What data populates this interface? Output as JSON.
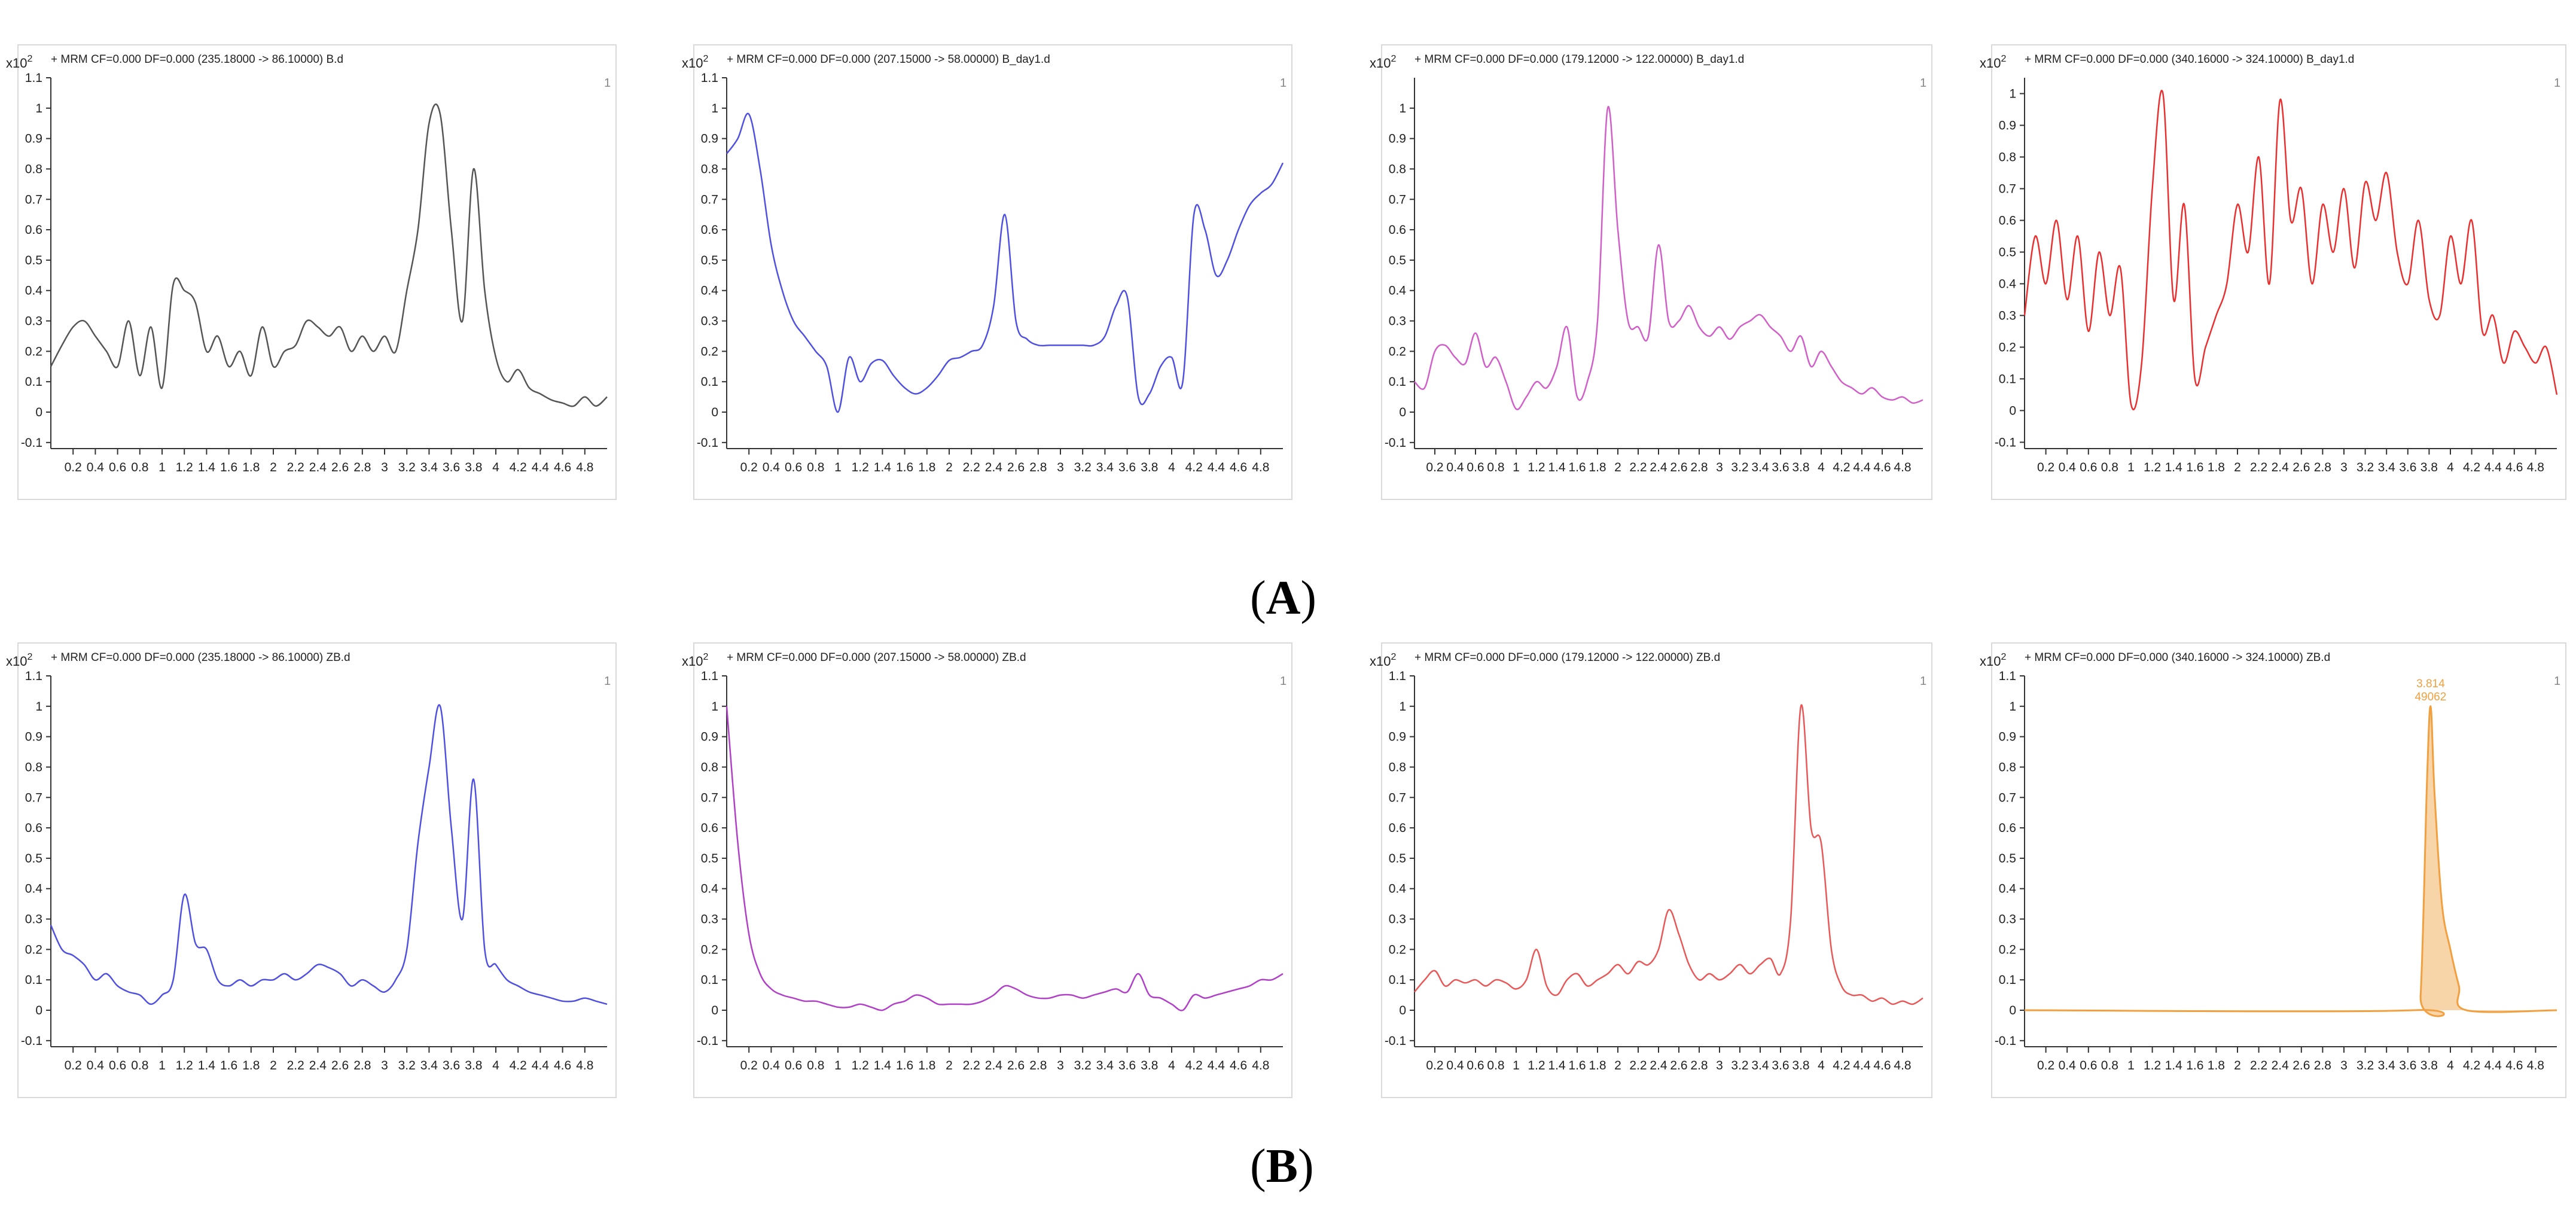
{
  "section_labels": {
    "a": "A",
    "b": "B"
  },
  "chart_data": [
    {
      "type": "line",
      "row": "A",
      "col": 0,
      "color": "#555555",
      "fill": false,
      "title": "MRM CF=0.000 DF=0.000 (235.18000 -> 86.10000) B.d",
      "y_exponent": "x10 2",
      "ylim": [
        -0.12,
        1.1
      ],
      "xlim": [
        0,
        5.0
      ],
      "x": [
        0,
        0.1,
        0.2,
        0.3,
        0.4,
        0.5,
        0.6,
        0.7,
        0.8,
        0.9,
        1.0,
        1.1,
        1.2,
        1.3,
        1.4,
        1.5,
        1.6,
        1.7,
        1.8,
        1.9,
        2.0,
        2.1,
        2.2,
        2.3,
        2.4,
        2.5,
        2.6,
        2.7,
        2.8,
        2.9,
        3.0,
        3.1,
        3.2,
        3.3,
        3.4,
        3.5,
        3.6,
        3.7,
        3.8,
        3.9,
        4.0,
        4.1,
        4.2,
        4.3,
        4.4,
        4.5,
        4.6,
        4.7,
        4.8,
        4.9,
        5.0
      ],
      "values": [
        0.15,
        0.22,
        0.28,
        0.3,
        0.25,
        0.2,
        0.15,
        0.3,
        0.12,
        0.28,
        0.08,
        0.42,
        0.4,
        0.36,
        0.2,
        0.25,
        0.15,
        0.2,
        0.12,
        0.28,
        0.15,
        0.2,
        0.22,
        0.3,
        0.28,
        0.25,
        0.28,
        0.2,
        0.25,
        0.2,
        0.25,
        0.2,
        0.4,
        0.6,
        0.95,
        0.98,
        0.6,
        0.3,
        0.8,
        0.4,
        0.18,
        0.1,
        0.14,
        0.08,
        0.06,
        0.04,
        0.03,
        0.02,
        0.05,
        0.02,
        0.05
      ],
      "ticks": [
        "0.2",
        "0.4",
        "0.6",
        "0.8",
        "1",
        "1.2",
        "1.4",
        "1.6",
        "1.8",
        "2",
        "2.2",
        "2.4",
        "2.6",
        "2.8",
        "3",
        "3.2",
        "3.4",
        "3.6",
        "3.8",
        "4",
        "4.2",
        "4.4",
        "4.6",
        "4.8"
      ],
      "yticks": [
        "-0.1",
        "0",
        "0.1",
        "0.2",
        "0.3",
        "0.4",
        "0.5",
        "0.6",
        "0.7",
        "0.8",
        "0.9",
        "1",
        "1.1"
      ]
    },
    {
      "type": "line",
      "row": "A",
      "col": 1,
      "color": "#5050e0",
      "fill": false,
      "title": "MRM CF=0.000 DF=0.000 (207.15000 -> 58.00000) B_day1.d",
      "y_exponent": "x10 2",
      "ylim": [
        -0.12,
        1.1
      ],
      "xlim": [
        0,
        5.0
      ],
      "x": [
        0,
        0.1,
        0.2,
        0.3,
        0.4,
        0.5,
        0.6,
        0.7,
        0.8,
        0.9,
        1.0,
        1.1,
        1.2,
        1.3,
        1.4,
        1.5,
        1.6,
        1.7,
        1.8,
        1.9,
        2.0,
        2.1,
        2.2,
        2.3,
        2.4,
        2.5,
        2.6,
        2.7,
        2.8,
        2.9,
        3.0,
        3.1,
        3.2,
        3.3,
        3.4,
        3.5,
        3.6,
        3.7,
        3.8,
        3.9,
        4.0,
        4.1,
        4.2,
        4.3,
        4.4,
        4.5,
        4.6,
        4.7,
        4.8,
        4.9,
        5.0
      ],
      "values": [
        0.85,
        0.9,
        0.98,
        0.8,
        0.55,
        0.4,
        0.3,
        0.25,
        0.2,
        0.15,
        0.0,
        0.18,
        0.1,
        0.16,
        0.17,
        0.12,
        0.08,
        0.06,
        0.08,
        0.12,
        0.17,
        0.18,
        0.2,
        0.22,
        0.35,
        0.65,
        0.3,
        0.24,
        0.22,
        0.22,
        0.22,
        0.22,
        0.22,
        0.22,
        0.25,
        0.35,
        0.38,
        0.05,
        0.06,
        0.15,
        0.18,
        0.1,
        0.65,
        0.6,
        0.45,
        0.5,
        0.6,
        0.68,
        0.72,
        0.75,
        0.82
      ],
      "ticks": [
        "0.2",
        "0.4",
        "0.6",
        "0.8",
        "1",
        "1.2",
        "1.4",
        "1.6",
        "1.8",
        "2",
        "2.2",
        "2.4",
        "2.6",
        "2.8",
        "3",
        "3.2",
        "3.4",
        "3.6",
        "3.8",
        "4",
        "4.2",
        "4.4",
        "4.6",
        "4.8"
      ],
      "yticks": [
        "-0.1",
        "0",
        "0.1",
        "0.2",
        "0.3",
        "0.4",
        "0.5",
        "0.6",
        "0.7",
        "0.8",
        "0.9",
        "1",
        "1.1"
      ]
    },
    {
      "type": "line",
      "row": "A",
      "col": 2,
      "color": "#d060c8",
      "fill": false,
      "title": "MRM CF=0.000 DF=0.000 (179.12000 -> 122.00000) B_day1.d",
      "y_exponent": "x10 2",
      "ylim": [
        -0.12,
        1.1
      ],
      "xlim": [
        0,
        5.0
      ],
      "x": [
        0,
        0.1,
        0.2,
        0.3,
        0.4,
        0.5,
        0.6,
        0.7,
        0.8,
        0.9,
        1.0,
        1.1,
        1.2,
        1.3,
        1.4,
        1.5,
        1.6,
        1.7,
        1.8,
        1.9,
        2.0,
        2.1,
        2.2,
        2.3,
        2.4,
        2.5,
        2.6,
        2.7,
        2.8,
        2.9,
        3.0,
        3.1,
        3.2,
        3.3,
        3.4,
        3.5,
        3.6,
        3.7,
        3.8,
        3.9,
        4.0,
        4.1,
        4.2,
        4.3,
        4.4,
        4.5,
        4.6,
        4.7,
        4.8,
        4.9,
        5.0
      ],
      "values": [
        0.1,
        0.08,
        0.2,
        0.22,
        0.18,
        0.16,
        0.26,
        0.15,
        0.18,
        0.1,
        0.01,
        0.05,
        0.1,
        0.08,
        0.15,
        0.28,
        0.05,
        0.1,
        0.3,
        1.0,
        0.6,
        0.3,
        0.28,
        0.25,
        0.55,
        0.3,
        0.3,
        0.35,
        0.28,
        0.25,
        0.28,
        0.24,
        0.28,
        0.3,
        0.32,
        0.28,
        0.25,
        0.2,
        0.25,
        0.15,
        0.2,
        0.15,
        0.1,
        0.08,
        0.06,
        0.08,
        0.05,
        0.04,
        0.05,
        0.03,
        0.04
      ],
      "ticks": [
        "0.2",
        "0.4",
        "0.6",
        "0.8",
        "1",
        "1.2",
        "1.4",
        "1.6",
        "1.8",
        "2",
        "2.2",
        "2.4",
        "2.6",
        "2.8",
        "3",
        "3.2",
        "3.4",
        "3.6",
        "3.8",
        "4",
        "4.2",
        "4.4",
        "4.6",
        "4.8"
      ],
      "yticks": [
        "-0.1",
        "0",
        "0.1",
        "0.2",
        "0.3",
        "0.4",
        "0.5",
        "0.6",
        "0.7",
        "0.8",
        "0.9",
        "1"
      ]
    },
    {
      "type": "line",
      "row": "A",
      "col": 3,
      "color": "#e83030",
      "fill": false,
      "title": "MRM CF=0.000 DF=0.000 (340.16000 -> 324.10000) B_day1.d",
      "y_exponent": "x10 2",
      "ylim": [
        -0.12,
        1.05
      ],
      "xlim": [
        0,
        5.0
      ],
      "x": [
        0,
        0.1,
        0.2,
        0.3,
        0.4,
        0.5,
        0.6,
        0.7,
        0.8,
        0.9,
        1.0,
        1.1,
        1.2,
        1.3,
        1.4,
        1.5,
        1.6,
        1.7,
        1.8,
        1.9,
        2.0,
        2.1,
        2.2,
        2.3,
        2.4,
        2.5,
        2.6,
        2.7,
        2.8,
        2.9,
        3.0,
        3.1,
        3.2,
        3.3,
        3.4,
        3.5,
        3.6,
        3.7,
        3.8,
        3.9,
        4.0,
        4.1,
        4.2,
        4.3,
        4.4,
        4.5,
        4.6,
        4.7,
        4.8,
        4.9,
        5.0
      ],
      "values": [
        0.3,
        0.55,
        0.4,
        0.6,
        0.35,
        0.55,
        0.25,
        0.5,
        0.3,
        0.45,
        0.02,
        0.15,
        0.7,
        1.0,
        0.35,
        0.65,
        0.1,
        0.2,
        0.3,
        0.4,
        0.65,
        0.5,
        0.8,
        0.4,
        0.98,
        0.6,
        0.7,
        0.4,
        0.65,
        0.5,
        0.7,
        0.45,
        0.72,
        0.6,
        0.75,
        0.5,
        0.4,
        0.6,
        0.35,
        0.3,
        0.55,
        0.4,
        0.6,
        0.25,
        0.3,
        0.15,
        0.25,
        0.2,
        0.15,
        0.2,
        0.05
      ],
      "ticks": [
        "0.2",
        "0.4",
        "0.6",
        "0.8",
        "1",
        "1.2",
        "1.4",
        "1.6",
        "1.8",
        "2",
        "2.2",
        "2.4",
        "2.6",
        "2.8",
        "3",
        "3.2",
        "3.4",
        "3.6",
        "3.8",
        "4",
        "4.2",
        "4.4",
        "4.6",
        "4.8"
      ],
      "yticks": [
        "-0.1",
        "0",
        "0.1",
        "0.2",
        "0.3",
        "0.4",
        "0.5",
        "0.6",
        "0.7",
        "0.8",
        "0.9",
        "1"
      ]
    },
    {
      "type": "line",
      "row": "B",
      "col": 0,
      "color": "#5050e0",
      "fill": false,
      "title": "MRM CF=0.000 DF=0.000 (235.18000 -> 86.10000) ZB.d",
      "y_exponent": "x10 2",
      "ylim": [
        -0.12,
        1.1
      ],
      "xlim": [
        0,
        5.0
      ],
      "x": [
        0,
        0.1,
        0.2,
        0.3,
        0.4,
        0.5,
        0.6,
        0.7,
        0.8,
        0.9,
        1.0,
        1.1,
        1.2,
        1.3,
        1.4,
        1.5,
        1.6,
        1.7,
        1.8,
        1.9,
        2.0,
        2.1,
        2.2,
        2.3,
        2.4,
        2.5,
        2.6,
        2.7,
        2.8,
        2.9,
        3.0,
        3.1,
        3.2,
        3.3,
        3.4,
        3.5,
        3.6,
        3.7,
        3.8,
        3.9,
        4.0,
        4.1,
        4.2,
        4.3,
        4.4,
        4.5,
        4.6,
        4.7,
        4.8,
        4.9,
        5.0
      ],
      "values": [
        0.28,
        0.2,
        0.18,
        0.15,
        0.1,
        0.12,
        0.08,
        0.06,
        0.05,
        0.02,
        0.05,
        0.1,
        0.38,
        0.22,
        0.2,
        0.1,
        0.08,
        0.1,
        0.08,
        0.1,
        0.1,
        0.12,
        0.1,
        0.12,
        0.15,
        0.14,
        0.12,
        0.08,
        0.1,
        0.08,
        0.06,
        0.1,
        0.2,
        0.55,
        0.8,
        1.0,
        0.6,
        0.3,
        0.76,
        0.2,
        0.15,
        0.1,
        0.08,
        0.06,
        0.05,
        0.04,
        0.03,
        0.03,
        0.04,
        0.03,
        0.02
      ],
      "ticks": [
        "0.2",
        "0.4",
        "0.6",
        "0.8",
        "1",
        "1.2",
        "1.4",
        "1.6",
        "1.8",
        "2",
        "2.2",
        "2.4",
        "2.6",
        "2.8",
        "3",
        "3.2",
        "3.4",
        "3.6",
        "3.8",
        "4",
        "4.2",
        "4.4",
        "4.6",
        "4.8"
      ],
      "yticks": [
        "-0.1",
        "0",
        "0.1",
        "0.2",
        "0.3",
        "0.4",
        "0.5",
        "0.6",
        "0.7",
        "0.8",
        "0.9",
        "1",
        "1.1"
      ]
    },
    {
      "type": "line",
      "row": "B",
      "col": 1,
      "color": "#b040c8",
      "fill": false,
      "title": "MRM CF=0.000 DF=0.000 (207.15000 -> 58.00000) ZB.d",
      "y_exponent": "x10 2",
      "ylim": [
        -0.12,
        1.1
      ],
      "xlim": [
        0,
        5.0
      ],
      "x": [
        0,
        0.1,
        0.2,
        0.3,
        0.4,
        0.5,
        0.6,
        0.7,
        0.8,
        0.9,
        1.0,
        1.1,
        1.2,
        1.3,
        1.4,
        1.5,
        1.6,
        1.7,
        1.8,
        1.9,
        2.0,
        2.1,
        2.2,
        2.3,
        2.4,
        2.5,
        2.6,
        2.7,
        2.8,
        2.9,
        3.0,
        3.1,
        3.2,
        3.3,
        3.4,
        3.5,
        3.6,
        3.7,
        3.8,
        3.9,
        4.0,
        4.1,
        4.2,
        4.3,
        4.4,
        4.5,
        4.6,
        4.7,
        4.8,
        4.9,
        5.0
      ],
      "values": [
        1.0,
        0.55,
        0.25,
        0.12,
        0.07,
        0.05,
        0.04,
        0.03,
        0.03,
        0.02,
        0.01,
        0.01,
        0.02,
        0.01,
        0.0,
        0.02,
        0.03,
        0.05,
        0.04,
        0.02,
        0.02,
        0.02,
        0.02,
        0.03,
        0.05,
        0.08,
        0.07,
        0.05,
        0.04,
        0.04,
        0.05,
        0.05,
        0.04,
        0.05,
        0.06,
        0.07,
        0.06,
        0.12,
        0.05,
        0.04,
        0.02,
        0.0,
        0.05,
        0.04,
        0.05,
        0.06,
        0.07,
        0.08,
        0.1,
        0.1,
        0.12
      ],
      "ticks": [
        "0.2",
        "0.4",
        "0.6",
        "0.8",
        "1",
        "1.2",
        "1.4",
        "1.6",
        "1.8",
        "2",
        "2.2",
        "2.4",
        "2.6",
        "2.8",
        "3",
        "3.2",
        "3.4",
        "3.6",
        "3.8",
        "4",
        "4.2",
        "4.4",
        "4.6",
        "4.8"
      ],
      "yticks": [
        "-0.1",
        "0",
        "0.1",
        "0.2",
        "0.3",
        "0.4",
        "0.5",
        "0.6",
        "0.7",
        "0.8",
        "0.9",
        "1",
        "1.1"
      ]
    },
    {
      "type": "line",
      "row": "B",
      "col": 2,
      "color": "#e85858",
      "fill": false,
      "title": "MRM CF=0.000 DF=0.000 (179.12000 -> 122.00000) ZB.d",
      "y_exponent": "x10 2",
      "ylim": [
        -0.12,
        1.1
      ],
      "xlim": [
        0,
        5.0
      ],
      "x": [
        0,
        0.1,
        0.2,
        0.3,
        0.4,
        0.5,
        0.6,
        0.7,
        0.8,
        0.9,
        1.0,
        1.1,
        1.2,
        1.3,
        1.4,
        1.5,
        1.6,
        1.7,
        1.8,
        1.9,
        2.0,
        2.1,
        2.2,
        2.3,
        2.4,
        2.5,
        2.6,
        2.7,
        2.8,
        2.9,
        3.0,
        3.1,
        3.2,
        3.3,
        3.4,
        3.5,
        3.6,
        3.7,
        3.8,
        3.9,
        4.0,
        4.1,
        4.2,
        4.3,
        4.4,
        4.5,
        4.6,
        4.7,
        4.8,
        4.9,
        5.0
      ],
      "values": [
        0.06,
        0.1,
        0.13,
        0.08,
        0.1,
        0.09,
        0.1,
        0.08,
        0.1,
        0.09,
        0.07,
        0.1,
        0.2,
        0.08,
        0.05,
        0.1,
        0.12,
        0.08,
        0.1,
        0.12,
        0.15,
        0.12,
        0.16,
        0.15,
        0.2,
        0.33,
        0.25,
        0.15,
        0.1,
        0.12,
        0.1,
        0.12,
        0.15,
        0.12,
        0.15,
        0.17,
        0.12,
        0.3,
        1.0,
        0.6,
        0.55,
        0.2,
        0.08,
        0.05,
        0.05,
        0.03,
        0.04,
        0.02,
        0.03,
        0.02,
        0.04
      ],
      "ticks": [
        "0.2",
        "0.4",
        "0.6",
        "0.8",
        "1",
        "1.2",
        "1.4",
        "1.6",
        "1.8",
        "2",
        "2.2",
        "2.4",
        "2.6",
        "2.8",
        "3",
        "3.2",
        "3.4",
        "3.6",
        "3.8",
        "4",
        "4.2",
        "4.4",
        "4.6",
        "4.8"
      ],
      "yticks": [
        "-0.1",
        "0",
        "0.1",
        "0.2",
        "0.3",
        "0.4",
        "0.5",
        "0.6",
        "0.7",
        "0.8",
        "0.9",
        "1",
        "1.1"
      ]
    },
    {
      "type": "area",
      "row": "B",
      "col": 3,
      "color": "#f0a040",
      "fill": true,
      "title": "MRM CF=0.000 DF=0.000 (340.16000 -> 324.10000) ZB.d",
      "y_exponent": "x10 2",
      "ylim": [
        -0.12,
        1.1
      ],
      "xlim": [
        0,
        5.0
      ],
      "x": [
        0,
        3.65,
        3.72,
        3.78,
        3.814,
        3.85,
        3.92,
        4.0,
        4.08,
        4.15,
        5.0
      ],
      "values": [
        0,
        0,
        0.05,
        0.75,
        1.0,
        0.72,
        0.35,
        0.2,
        0.08,
        0,
        0
      ],
      "peak_label": {
        "rt": "3.814",
        "area": "49062"
      },
      "ticks": [
        "0.2",
        "0.4",
        "0.6",
        "0.8",
        "1",
        "1.2",
        "1.4",
        "1.6",
        "1.8",
        "2",
        "2.2",
        "2.4",
        "2.6",
        "2.8",
        "3",
        "3.2",
        "3.4",
        "3.6",
        "3.8",
        "4",
        "4.2",
        "4.4",
        "4.6",
        "4.8"
      ],
      "yticks": [
        "-0.1",
        "0",
        "0.1",
        "0.2",
        "0.3",
        "0.4",
        "0.5",
        "0.6",
        "0.7",
        "0.8",
        "0.9",
        "1",
        "1.1"
      ]
    }
  ]
}
